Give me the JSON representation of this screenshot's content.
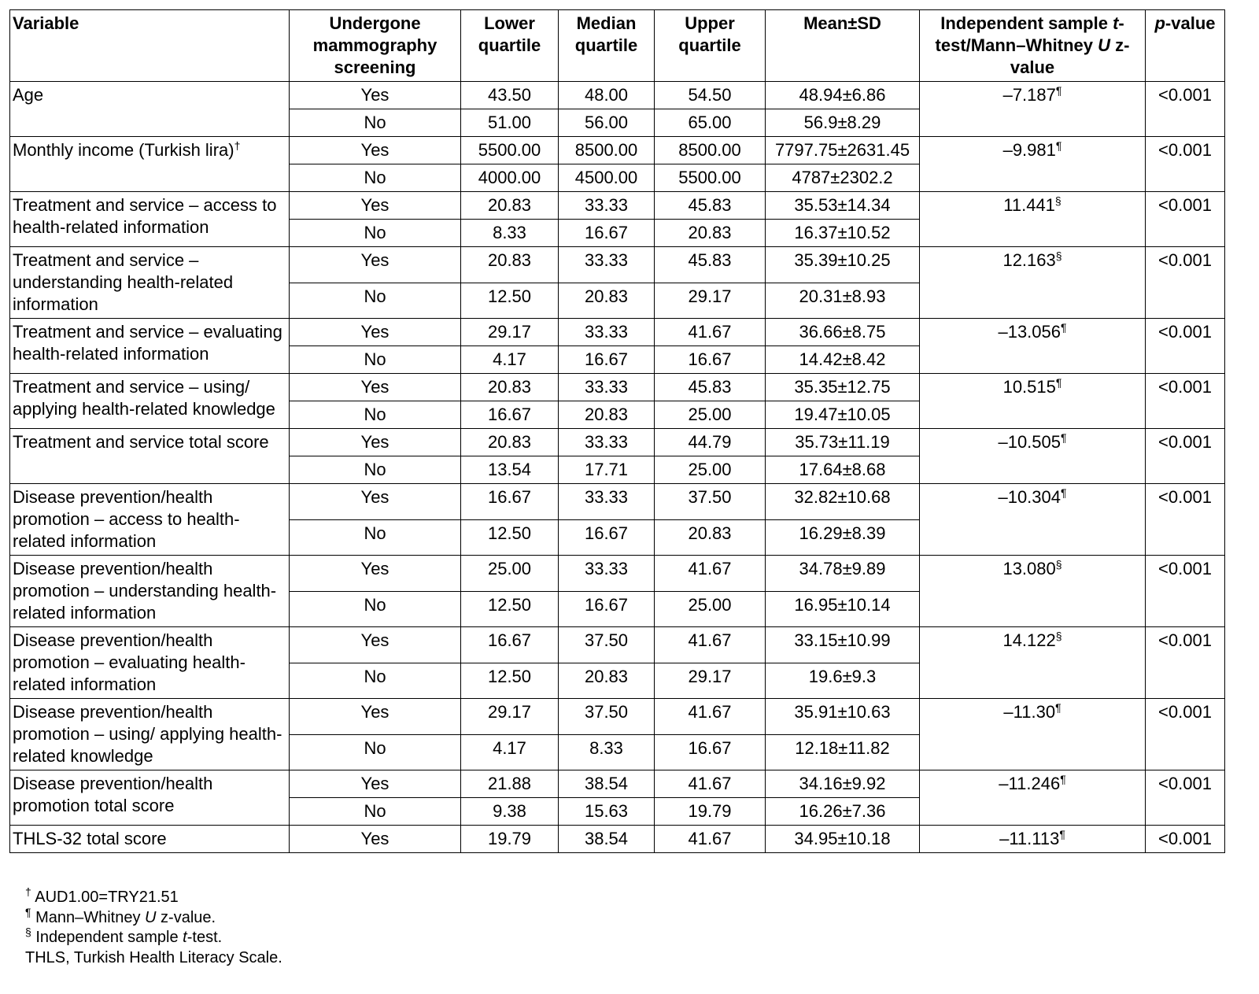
{
  "header": [
    [
      {
        "text": "Variable"
      }
    ],
    [
      {
        "text": "Undergone mammography screening"
      }
    ],
    [
      {
        "text": "Lower quartile"
      }
    ],
    [
      {
        "text": "Median quartile"
      }
    ],
    [
      {
        "text": "Upper quartile"
      }
    ],
    [
      {
        "text": "Mean±SD"
      }
    ],
    [
      {
        "text": "Independent sample "
      },
      {
        "text": "t",
        "italic": true
      },
      {
        "text": "-test/Mann–Whitney "
      },
      {
        "text": "U",
        "italic": true
      },
      {
        "text": " z-value"
      }
    ],
    [
      {
        "text": "p",
        "italic": true
      },
      {
        "text": "-value"
      }
    ]
  ],
  "groups": [
    {
      "variable": "Age",
      "statistic": "–7.187",
      "statistic_mark": "¶",
      "p": "<0.001",
      "rows": [
        [
          "Yes",
          "43.50",
          "48.00",
          "54.50",
          "48.94±6.86"
        ],
        [
          "No",
          "51.00",
          "56.00",
          "65.00",
          "56.9±8.29"
        ]
      ]
    },
    {
      "variable": "Monthly income (Turkish lira)",
      "variable_mark": "†",
      "statistic": "–9.981",
      "statistic_mark": "¶",
      "p": "<0.001",
      "rows": [
        [
          "Yes",
          "5500.00",
          "8500.00",
          "8500.00",
          "7797.75±2631.45"
        ],
        [
          "No",
          "4000.00",
          "4500.00",
          "5500.00",
          "4787±2302.2"
        ]
      ]
    },
    {
      "variable": "Treatment and service – access to health-related information",
      "statistic": "11.441",
      "statistic_mark": "§",
      "p": "<0.001",
      "rows": [
        [
          "Yes",
          "20.83",
          "33.33",
          "45.83",
          "35.53±14.34"
        ],
        [
          "No",
          "8.33",
          "16.67",
          "20.83",
          "16.37±10.52"
        ]
      ]
    },
    {
      "variable": "Treatment and service – understanding health-related information",
      "statistic": "12.163",
      "statistic_mark": "§",
      "p": "<0.001",
      "rows": [
        [
          "Yes",
          "20.83",
          "33.33",
          "45.83",
          "35.39±10.25"
        ],
        [
          "No",
          "12.50",
          "20.83",
          "29.17",
          "20.31±8.93"
        ]
      ]
    },
    {
      "variable": "Treatment and service – evaluating health-related information",
      "statistic": "–13.056",
      "statistic_mark": "¶",
      "p": "<0.001",
      "rows": [
        [
          "Yes",
          "29.17",
          "33.33",
          "41.67",
          "36.66±8.75"
        ],
        [
          "No",
          "4.17",
          "16.67",
          "16.67",
          "14.42±8.42"
        ]
      ]
    },
    {
      "variable": "Treatment and service – using/ applying health-related knowledge",
      "statistic": "10.515",
      "statistic_mark": "¶",
      "p": "<0.001",
      "rows": [
        [
          "Yes",
          "20.83",
          "33.33",
          "45.83",
          "35.35±12.75"
        ],
        [
          "No",
          "16.67",
          "20.83",
          "25.00",
          "19.47±10.05"
        ]
      ]
    },
    {
      "variable": "Treatment and service total score",
      "statistic": "–10.505",
      "statistic_mark": "¶",
      "p": "<0.001",
      "rows": [
        [
          "Yes",
          "20.83",
          "33.33",
          "44.79",
          "35.73±11.19"
        ],
        [
          "No",
          "13.54",
          "17.71",
          "25.00",
          "17.64±8.68"
        ]
      ]
    },
    {
      "variable": "Disease prevention/health promotion – access to health-related information",
      "statistic": "–10.304",
      "statistic_mark": "¶",
      "p": "<0.001",
      "rows": [
        [
          "Yes",
          "16.67",
          "33.33",
          "37.50",
          "32.82±10.68"
        ],
        [
          "No",
          "12.50",
          "16.67",
          "20.83",
          "16.29±8.39"
        ]
      ]
    },
    {
      "variable": "Disease prevention/health promotion – understanding health-related information",
      "statistic": "13.080",
      "statistic_mark": "§",
      "p": "<0.001",
      "rows": [
        [
          "Yes",
          "25.00",
          "33.33",
          "41.67",
          "34.78±9.89"
        ],
        [
          "No",
          "12.50",
          "16.67",
          "25.00",
          "16.95±10.14"
        ]
      ]
    },
    {
      "variable": "Disease prevention/health promotion – evaluating health-related information",
      "statistic": "14.122",
      "statistic_mark": "§",
      "p": "<0.001",
      "rows": [
        [
          "Yes",
          "16.67",
          "37.50",
          "41.67",
          "33.15±10.99"
        ],
        [
          "No",
          "12.50",
          "20.83",
          "29.17",
          "19.6±9.3"
        ]
      ]
    },
    {
      "variable": "Disease prevention/health promotion – using/ applying health-related knowledge",
      "statistic": "–11.30",
      "statistic_mark": "¶",
      "p": "<0.001",
      "rows": [
        [
          "Yes",
          "29.17",
          "37.50",
          "41.67",
          "35.91±10.63"
        ],
        [
          "No",
          "4.17",
          "8.33",
          "16.67",
          "12.18±11.82"
        ]
      ]
    },
    {
      "variable": "Disease prevention/health promotion total score",
      "statistic": "–11.246",
      "statistic_mark": "¶",
      "p": "<0.001",
      "rows": [
        [
          "Yes",
          "21.88",
          "38.54",
          "41.67",
          "34.16±9.92"
        ],
        [
          "No",
          "9.38",
          "15.63",
          "19.79",
          "16.26±7.36"
        ]
      ]
    },
    {
      "variable": "THLS-32 total score",
      "statistic": "–11.113",
      "statistic_mark": "¶",
      "p": "<0.001",
      "rows": [
        [
          "Yes",
          "19.79",
          "38.54",
          "41.67",
          "34.95±10.18"
        ]
      ]
    }
  ],
  "footnotes": [
    [
      {
        "text": "†",
        "sup": true
      },
      {
        "text": " AUD1.00=TRY21.51"
      }
    ],
    [
      {
        "text": "¶",
        "sup": true
      },
      {
        "text": " Mann–Whitney "
      },
      {
        "text": "U",
        "italic": true
      },
      {
        "text": " z-value."
      }
    ],
    [
      {
        "text": "§",
        "sup": true
      },
      {
        "text": " Independent sample "
      },
      {
        "text": "t",
        "italic": true
      },
      {
        "text": "-test."
      }
    ],
    [
      {
        "text": "THLS, Turkish Health Literacy Scale."
      }
    ]
  ]
}
